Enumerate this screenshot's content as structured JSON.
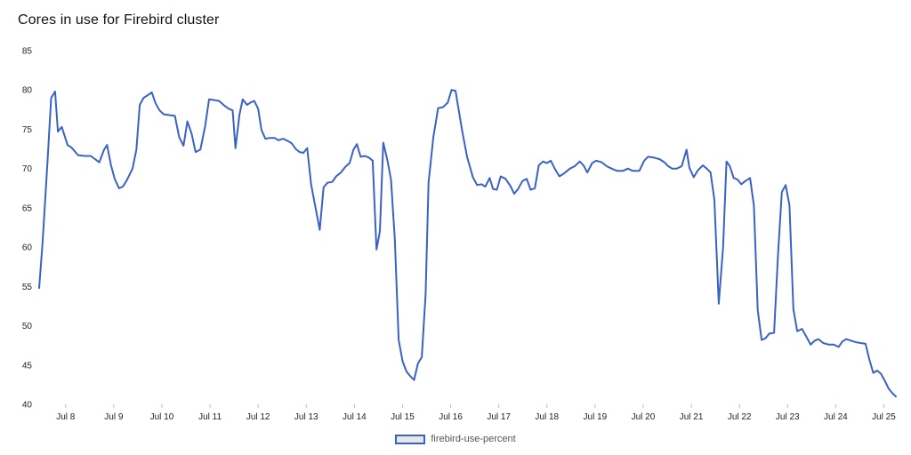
{
  "chart_data": {
    "type": "line",
    "title": "Cores in use for Firebird cluster",
    "xlabel": "",
    "ylabel": "",
    "ylim": [
      40,
      85
    ],
    "yticks": [
      40,
      45,
      50,
      55,
      60,
      65,
      70,
      75,
      80,
      85
    ],
    "xlim": [
      7.45,
      25.25
    ],
    "xticks": [
      {
        "label": "Jul 8",
        "value": 8
      },
      {
        "label": "Jul 9",
        "value": 9
      },
      {
        "label": "Jul 10",
        "value": 10
      },
      {
        "label": "Jul 11",
        "value": 11
      },
      {
        "label": "Jul 12",
        "value": 12
      },
      {
        "label": "Jul 13",
        "value": 13
      },
      {
        "label": "Jul 14",
        "value": 14
      },
      {
        "label": "Jul 15",
        "value": 15
      },
      {
        "label": "Jul 16",
        "value": 16
      },
      {
        "label": "Jul 17",
        "value": 17
      },
      {
        "label": "Jul 18",
        "value": 18
      },
      {
        "label": "Jul 19",
        "value": 19
      },
      {
        "label": "Jul 20",
        "value": 20
      },
      {
        "label": "Jul 21",
        "value": 21
      },
      {
        "label": "Jul 22",
        "value": 22
      },
      {
        "label": "Jul 23",
        "value": 23
      },
      {
        "label": "Jul 24",
        "value": 24
      },
      {
        "label": "Jul 25",
        "value": 25
      }
    ],
    "grid": false,
    "legend_position": "bottom-center",
    "series": [
      {
        "name": "firebird-use-percent",
        "color": "#3a62c5",
        "points": [
          [
            7.45,
            54.8
          ],
          [
            7.52,
            60.5
          ],
          [
            7.62,
            70.5
          ],
          [
            7.7,
            79.0
          ],
          [
            7.78,
            79.8
          ],
          [
            7.84,
            74.7
          ],
          [
            7.92,
            75.3
          ],
          [
            8.04,
            73.0
          ],
          [
            8.12,
            72.7
          ],
          [
            8.26,
            71.7
          ],
          [
            8.4,
            71.6
          ],
          [
            8.52,
            71.6
          ],
          [
            8.7,
            70.8
          ],
          [
            8.8,
            72.4
          ],
          [
            8.86,
            73.0
          ],
          [
            8.94,
            70.5
          ],
          [
            9.02,
            68.7
          ],
          [
            9.11,
            67.5
          ],
          [
            9.19,
            67.7
          ],
          [
            9.27,
            68.5
          ],
          [
            9.39,
            70.0
          ],
          [
            9.47,
            72.4
          ],
          [
            9.54,
            78.1
          ],
          [
            9.62,
            79.0
          ],
          [
            9.7,
            79.3
          ],
          [
            9.79,
            79.7
          ],
          [
            9.87,
            78.3
          ],
          [
            9.95,
            77.4
          ],
          [
            10.04,
            76.9
          ],
          [
            10.15,
            76.8
          ],
          [
            10.27,
            76.7
          ],
          [
            10.36,
            74.0
          ],
          [
            10.45,
            72.9
          ],
          [
            10.53,
            76.0
          ],
          [
            10.62,
            74.4
          ],
          [
            10.7,
            72.1
          ],
          [
            10.8,
            72.4
          ],
          [
            10.9,
            75.4
          ],
          [
            10.98,
            78.8
          ],
          [
            11.1,
            78.7
          ],
          [
            11.19,
            78.6
          ],
          [
            11.3,
            78.0
          ],
          [
            11.39,
            77.6
          ],
          [
            11.47,
            77.4
          ],
          [
            11.53,
            72.6
          ],
          [
            11.61,
            76.8
          ],
          [
            11.68,
            78.8
          ],
          [
            11.77,
            78.1
          ],
          [
            11.84,
            78.4
          ],
          [
            11.92,
            78.6
          ],
          [
            12.0,
            77.6
          ],
          [
            12.07,
            74.9
          ],
          [
            12.15,
            73.8
          ],
          [
            12.24,
            73.9
          ],
          [
            12.34,
            73.9
          ],
          [
            12.42,
            73.6
          ],
          [
            12.52,
            73.8
          ],
          [
            12.62,
            73.5
          ],
          [
            12.7,
            73.2
          ],
          [
            12.78,
            72.5
          ],
          [
            12.86,
            72.1
          ],
          [
            12.94,
            72.0
          ],
          [
            13.02,
            72.6
          ],
          [
            13.1,
            68.0
          ],
          [
            13.28,
            62.2
          ],
          [
            13.36,
            67.6
          ],
          [
            13.44,
            68.2
          ],
          [
            13.54,
            68.3
          ],
          [
            13.62,
            69.0
          ],
          [
            13.72,
            69.5
          ],
          [
            13.81,
            70.2
          ],
          [
            13.9,
            70.7
          ],
          [
            13.98,
            72.4
          ],
          [
            14.05,
            73.1
          ],
          [
            14.13,
            71.5
          ],
          [
            14.22,
            71.6
          ],
          [
            14.3,
            71.4
          ],
          [
            14.38,
            71.0
          ],
          [
            14.46,
            59.7
          ],
          [
            14.53,
            62.0
          ],
          [
            14.6,
            73.3
          ],
          [
            14.68,
            71.2
          ],
          [
            14.76,
            68.6
          ],
          [
            14.84,
            61.0
          ],
          [
            14.92,
            48.2
          ],
          [
            15.0,
            45.5
          ],
          [
            15.08,
            44.2
          ],
          [
            15.16,
            43.6
          ],
          [
            15.24,
            43.1
          ],
          [
            15.32,
            45.2
          ],
          [
            15.4,
            46.0
          ],
          [
            15.48,
            54.0
          ],
          [
            15.54,
            68.2
          ],
          [
            15.64,
            74.0
          ],
          [
            15.74,
            77.7
          ],
          [
            15.84,
            77.8
          ],
          [
            15.94,
            78.4
          ],
          [
            16.02,
            80.0
          ],
          [
            16.1,
            79.9
          ],
          [
            16.24,
            74.8
          ],
          [
            16.34,
            71.5
          ],
          [
            16.46,
            68.9
          ],
          [
            16.55,
            67.9
          ],
          [
            16.64,
            68.0
          ],
          [
            16.72,
            67.7
          ],
          [
            16.81,
            68.8
          ],
          [
            16.88,
            67.4
          ],
          [
            16.96,
            67.3
          ],
          [
            17.04,
            69.0
          ],
          [
            17.14,
            68.7
          ],
          [
            17.24,
            67.8
          ],
          [
            17.32,
            66.8
          ],
          [
            17.4,
            67.4
          ],
          [
            17.49,
            68.4
          ],
          [
            17.58,
            68.7
          ],
          [
            17.66,
            67.3
          ],
          [
            17.75,
            67.5
          ],
          [
            17.83,
            70.4
          ],
          [
            17.92,
            70.9
          ],
          [
            18.0,
            70.7
          ],
          [
            18.08,
            71.0
          ],
          [
            18.17,
            69.9
          ],
          [
            18.26,
            69.0
          ],
          [
            18.36,
            69.4
          ],
          [
            18.48,
            70.0
          ],
          [
            18.58,
            70.3
          ],
          [
            18.68,
            70.9
          ],
          [
            18.76,
            70.4
          ],
          [
            18.84,
            69.5
          ],
          [
            18.94,
            70.7
          ],
          [
            19.02,
            71.0
          ],
          [
            19.14,
            70.8
          ],
          [
            19.24,
            70.3
          ],
          [
            19.34,
            70.0
          ],
          [
            19.46,
            69.7
          ],
          [
            19.58,
            69.7
          ],
          [
            19.68,
            70.0
          ],
          [
            19.78,
            69.7
          ],
          [
            19.92,
            69.7
          ],
          [
            20.02,
            71.0
          ],
          [
            20.1,
            71.5
          ],
          [
            20.22,
            71.4
          ],
          [
            20.34,
            71.2
          ],
          [
            20.44,
            70.8
          ],
          [
            20.52,
            70.3
          ],
          [
            20.6,
            70.0
          ],
          [
            20.7,
            70.0
          ],
          [
            20.8,
            70.3
          ],
          [
            20.9,
            72.4
          ],
          [
            20.96,
            70.1
          ],
          [
            21.05,
            68.9
          ],
          [
            21.14,
            69.8
          ],
          [
            21.24,
            70.4
          ],
          [
            21.32,
            70.0
          ],
          [
            21.4,
            69.5
          ],
          [
            21.48,
            66.0
          ],
          [
            21.57,
            52.8
          ],
          [
            21.66,
            60.0
          ],
          [
            21.73,
            70.9
          ],
          [
            21.8,
            70.3
          ],
          [
            21.88,
            68.8
          ],
          [
            21.96,
            68.6
          ],
          [
            22.04,
            68.0
          ],
          [
            22.12,
            68.4
          ],
          [
            22.22,
            68.8
          ],
          [
            22.3,
            65.3
          ],
          [
            22.38,
            52.0
          ],
          [
            22.46,
            48.2
          ],
          [
            22.54,
            48.4
          ],
          [
            22.62,
            49.0
          ],
          [
            22.72,
            49.1
          ],
          [
            22.8,
            59.0
          ],
          [
            22.88,
            67.0
          ],
          [
            22.96,
            67.9
          ],
          [
            23.04,
            65.3
          ],
          [
            23.12,
            52.1
          ],
          [
            23.2,
            49.3
          ],
          [
            23.3,
            49.6
          ],
          [
            23.4,
            48.5
          ],
          [
            23.48,
            47.6
          ],
          [
            23.56,
            48.1
          ],
          [
            23.64,
            48.3
          ],
          [
            23.74,
            47.8
          ],
          [
            23.86,
            47.6
          ],
          [
            23.96,
            47.6
          ],
          [
            24.06,
            47.3
          ],
          [
            24.14,
            48.0
          ],
          [
            24.22,
            48.3
          ],
          [
            24.32,
            48.1
          ],
          [
            24.42,
            47.9
          ],
          [
            24.52,
            47.8
          ],
          [
            24.62,
            47.7
          ],
          [
            24.7,
            45.7
          ],
          [
            24.78,
            44.0
          ],
          [
            24.86,
            44.3
          ],
          [
            24.94,
            43.9
          ],
          [
            25.02,
            43.0
          ],
          [
            25.1,
            42.0
          ],
          [
            25.18,
            41.4
          ],
          [
            25.25,
            41.0
          ]
        ]
      }
    ]
  }
}
